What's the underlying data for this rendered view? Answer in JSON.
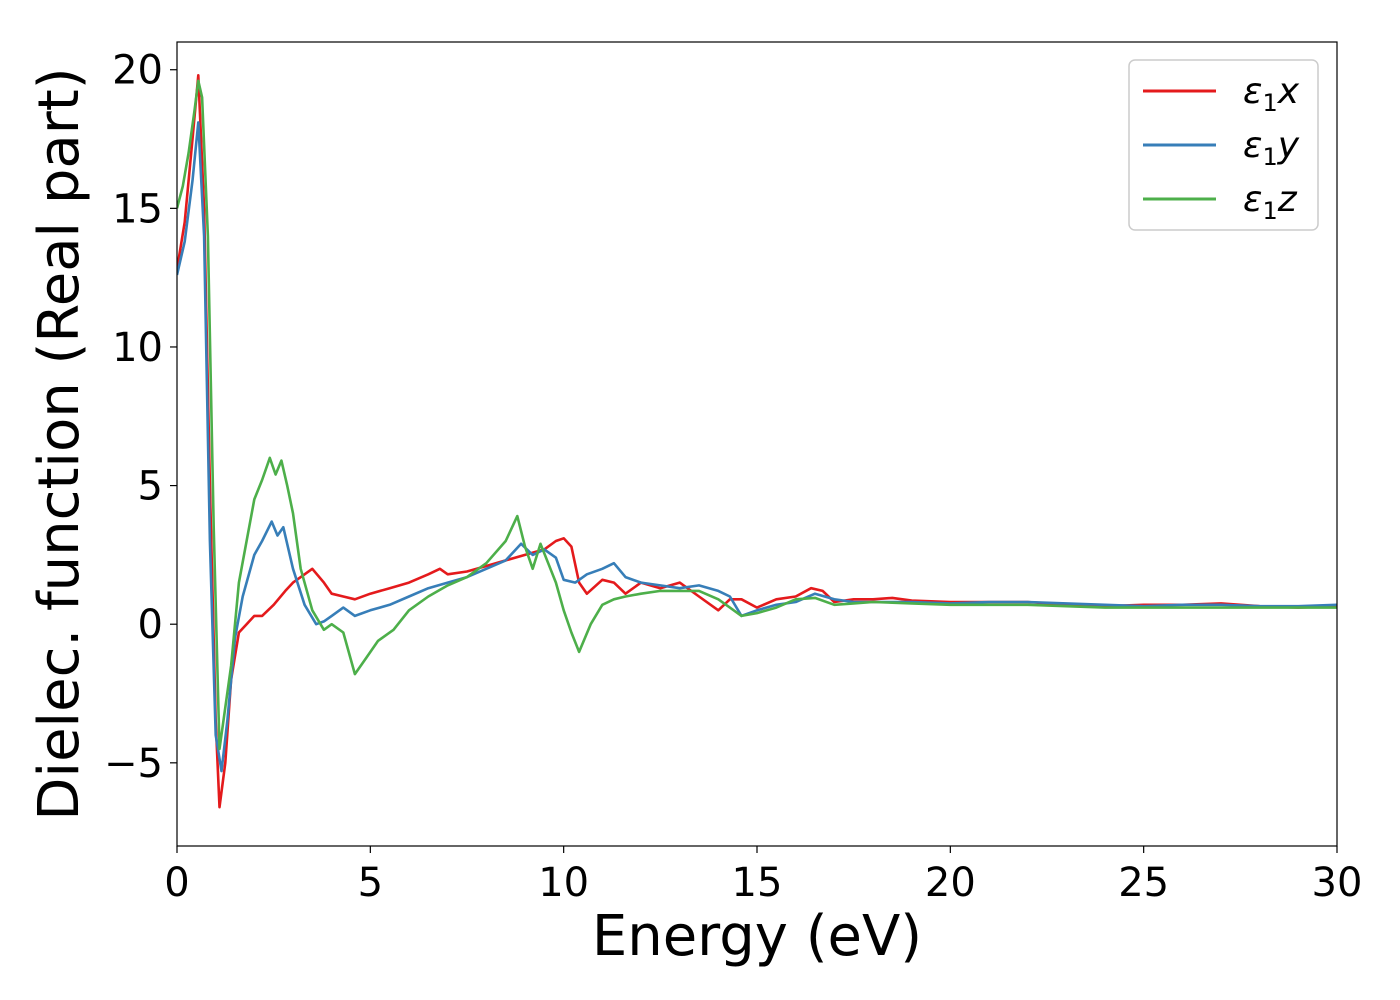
{
  "chart_data": {
    "type": "line",
    "xlabel": "Energy (eV)",
    "ylabel": "Dielec. function (Real part)",
    "xlim": [
      0,
      30
    ],
    "ylim": [
      -8,
      21
    ],
    "xticks": [
      0,
      5,
      10,
      15,
      20,
      25,
      30
    ],
    "xtick_labels": [
      "0",
      "5",
      "10",
      "15",
      "20",
      "25",
      "30"
    ],
    "yticks": [
      -5,
      0,
      5,
      10,
      15,
      20
    ],
    "ytick_labels": [
      "−5",
      "0",
      "5",
      "10",
      "15",
      "20"
    ],
    "grid": false,
    "legend_position": "top-right",
    "series": [
      {
        "name": "ε1x",
        "legend_symbol": "ε",
        "legend_sub": "1",
        "legend_var": "x",
        "color": "#e41a1c",
        "x": [
          0,
          0.2,
          0.4,
          0.55,
          0.7,
          0.85,
          1.0,
          1.1,
          1.25,
          1.4,
          1.6,
          1.8,
          2.0,
          2.2,
          2.5,
          2.8,
          3.0,
          3.3,
          3.5,
          3.8,
          4.0,
          4.3,
          4.6,
          5.0,
          5.5,
          6.0,
          6.5,
          6.8,
          7.0,
          7.5,
          8.0,
          8.5,
          9.0,
          9.5,
          9.8,
          10.0,
          10.2,
          10.4,
          10.6,
          11.0,
          11.3,
          11.6,
          12.0,
          12.5,
          13.0,
          13.5,
          14.0,
          14.3,
          14.6,
          15.0,
          15.5,
          16.0,
          16.4,
          16.7,
          17.0,
          17.5,
          18.0,
          18.5,
          19.0,
          20.0,
          21.0,
          22.0,
          23.0,
          24.0,
          25.0,
          26.0,
          27.0,
          28.0,
          29.0,
          30.0
        ],
        "y": [
          12.8,
          14.5,
          17.5,
          19.8,
          15.0,
          5.0,
          -3.5,
          -6.6,
          -5.0,
          -2.0,
          -0.3,
          0.0,
          0.3,
          0.3,
          0.7,
          1.2,
          1.5,
          1.8,
          2.0,
          1.5,
          1.1,
          1.0,
          0.9,
          1.1,
          1.3,
          1.5,
          1.8,
          2.0,
          1.8,
          1.9,
          2.1,
          2.3,
          2.5,
          2.7,
          3.0,
          3.1,
          2.8,
          1.5,
          1.1,
          1.6,
          1.5,
          1.1,
          1.5,
          1.3,
          1.5,
          1.0,
          0.5,
          0.9,
          0.9,
          0.6,
          0.9,
          1.0,
          1.3,
          1.2,
          0.8,
          0.9,
          0.9,
          0.95,
          0.85,
          0.8,
          0.8,
          0.8,
          0.7,
          0.65,
          0.7,
          0.7,
          0.75,
          0.65,
          0.6,
          0.65
        ]
      },
      {
        "name": "ε1y",
        "legend_symbol": "ε",
        "legend_sub": "1",
        "legend_var": "y",
        "color": "#377eb8",
        "x": [
          0,
          0.2,
          0.4,
          0.55,
          0.7,
          0.85,
          1.0,
          1.15,
          1.3,
          1.5,
          1.7,
          2.0,
          2.2,
          2.45,
          2.6,
          2.75,
          3.0,
          3.3,
          3.6,
          3.8,
          4.0,
          4.3,
          4.6,
          5.0,
          5.5,
          6.0,
          6.5,
          7.0,
          7.5,
          8.0,
          8.5,
          8.9,
          9.2,
          9.5,
          9.8,
          10.0,
          10.3,
          10.6,
          11.0,
          11.3,
          11.6,
          12.0,
          12.5,
          13.0,
          13.5,
          14.0,
          14.3,
          14.6,
          15.0,
          15.5,
          16.0,
          16.5,
          17.0,
          17.5,
          18.0,
          19.0,
          20.0,
          21.0,
          22.0,
          23.0,
          24.0,
          25.0,
          26.0,
          27.0,
          28.0,
          29.0,
          30.0
        ],
        "y": [
          12.6,
          13.8,
          16.0,
          18.1,
          14.0,
          3.0,
          -4.0,
          -5.3,
          -3.5,
          -0.5,
          1.0,
          2.5,
          3.0,
          3.7,
          3.2,
          3.5,
          2.0,
          0.7,
          0.0,
          0.1,
          0.3,
          0.6,
          0.3,
          0.5,
          0.7,
          1.0,
          1.3,
          1.5,
          1.7,
          2.0,
          2.3,
          2.9,
          2.5,
          2.7,
          2.4,
          1.6,
          1.5,
          1.8,
          2.0,
          2.2,
          1.7,
          1.5,
          1.4,
          1.3,
          1.4,
          1.2,
          1.0,
          0.3,
          0.5,
          0.7,
          0.8,
          1.1,
          0.9,
          0.8,
          0.8,
          0.8,
          0.75,
          0.8,
          0.8,
          0.75,
          0.7,
          0.65,
          0.7,
          0.7,
          0.65,
          0.65,
          0.7
        ]
      },
      {
        "name": "ε1z",
        "legend_symbol": "ε",
        "legend_sub": "1",
        "legend_var": "z",
        "color": "#4daf4a",
        "x": [
          0,
          0.15,
          0.3,
          0.45,
          0.55,
          0.65,
          0.8,
          0.95,
          1.1,
          1.25,
          1.4,
          1.6,
          1.8,
          2.0,
          2.2,
          2.4,
          2.55,
          2.7,
          2.85,
          3.0,
          3.2,
          3.5,
          3.8,
          4.0,
          4.3,
          4.6,
          4.9,
          5.2,
          5.6,
          6.0,
          6.5,
          7.0,
          7.5,
          8.0,
          8.5,
          8.8,
          9.0,
          9.2,
          9.4,
          9.6,
          9.8,
          10.0,
          10.2,
          10.4,
          10.7,
          11.0,
          11.3,
          11.6,
          12.0,
          12.5,
          13.0,
          13.5,
          14.0,
          14.3,
          14.6,
          15.0,
          15.5,
          16.0,
          16.5,
          17.0,
          17.5,
          18.0,
          19.0,
          20.0,
          21.0,
          22.0,
          23.0,
          24.0,
          25.0,
          26.0,
          27.0,
          28.0,
          29.0,
          30.0
        ],
        "y": [
          15.0,
          15.8,
          17.0,
          18.5,
          19.6,
          19.0,
          14.0,
          3.5,
          -4.5,
          -3.0,
          -1.5,
          1.5,
          3.0,
          4.5,
          5.2,
          6.0,
          5.4,
          5.9,
          5.0,
          4.0,
          2.0,
          0.5,
          -0.2,
          0.0,
          -0.3,
          -1.8,
          -1.2,
          -0.6,
          -0.2,
          0.5,
          1.0,
          1.4,
          1.7,
          2.2,
          3.0,
          3.9,
          2.8,
          2.0,
          2.9,
          2.2,
          1.5,
          0.5,
          -0.3,
          -1.0,
          0.0,
          0.7,
          0.9,
          1.0,
          1.1,
          1.2,
          1.2,
          1.2,
          0.9,
          0.6,
          0.3,
          0.4,
          0.6,
          0.9,
          0.95,
          0.7,
          0.75,
          0.8,
          0.75,
          0.7,
          0.7,
          0.7,
          0.65,
          0.6,
          0.6,
          0.6,
          0.6,
          0.6,
          0.6,
          0.6
        ]
      }
    ]
  }
}
